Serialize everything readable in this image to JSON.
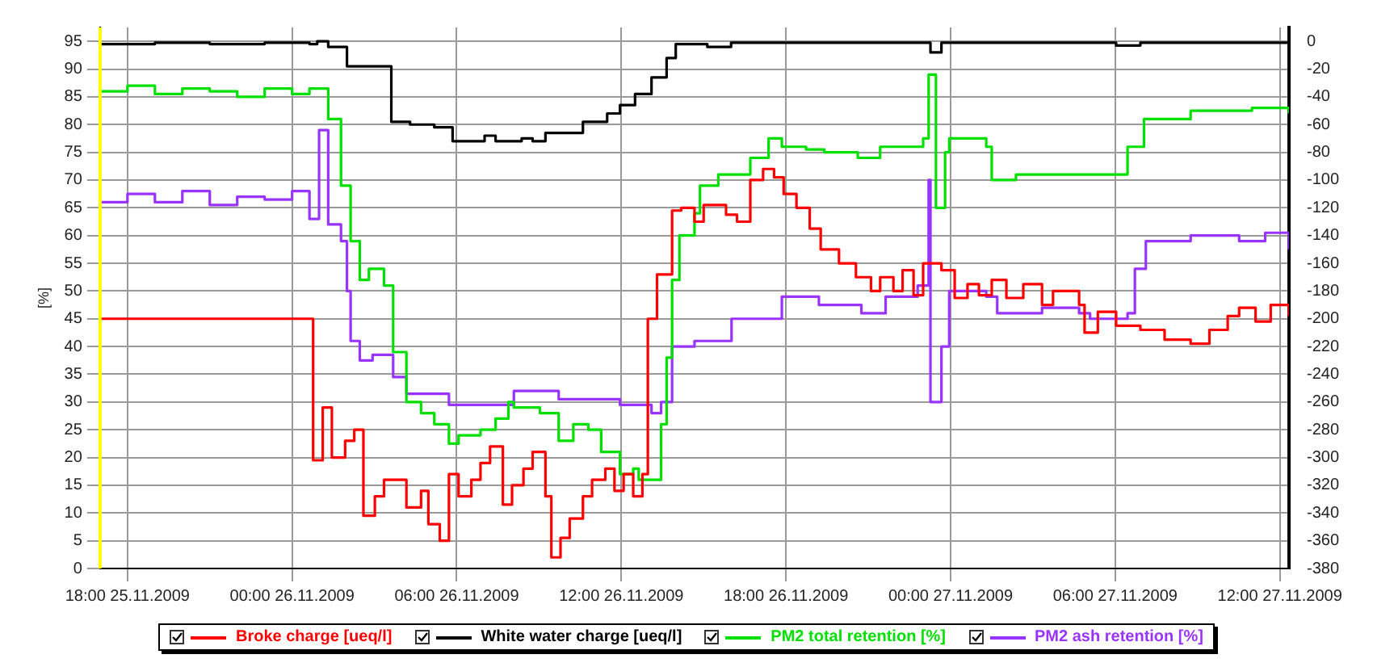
{
  "chart_data": {
    "type": "step",
    "ylabel": "[%]",
    "xlim": [
      "2009-11-25T17:00",
      "2009-11-27T12:20"
    ],
    "xticks": [
      {
        "value": "2009-11-25T18:00",
        "label": "18:00 25.11.2009"
      },
      {
        "value": "2009-11-26T00:00",
        "label": "00:00 26.11.2009"
      },
      {
        "value": "2009-11-26T06:00",
        "label": "06:00 26.11.2009"
      },
      {
        "value": "2009-11-26T12:00",
        "label": "12:00 26.11.2009"
      },
      {
        "value": "2009-11-26T18:00",
        "label": "18:00 26.11.2009"
      },
      {
        "value": "2009-11-27T00:00",
        "label": "00:00 27.11.2009"
      },
      {
        "value": "2009-11-27T06:00",
        "label": "06:00 27.11.2009"
      },
      {
        "value": "2009-11-27T12:00",
        "label": "12:00 27.11.2009"
      }
    ],
    "ylim": [
      0,
      97.5
    ],
    "yticks": [
      0,
      5,
      10,
      15,
      20,
      25,
      30,
      35,
      40,
      45,
      50,
      55,
      60,
      65,
      70,
      75,
      80,
      85,
      90,
      95
    ],
    "y2lim": [
      -380,
      10
    ],
    "y2ticks": [
      0,
      -20,
      -40,
      -60,
      -80,
      -100,
      -120,
      -140,
      -160,
      -180,
      -200,
      -220,
      -240,
      -260,
      -280,
      -300,
      -320,
      -340,
      -360,
      -380
    ],
    "grid": true,
    "legend": "bottom",
    "marker": "none",
    "line_style": "solid",
    "ref_lines": [
      {
        "axis": "x",
        "value": "2009-11-25T17:00",
        "color": "#ffff00"
      }
    ],
    "series": [
      {
        "name": "Broke charge [ueq/l]",
        "color": "#ff0000",
        "axis": "y2",
        "x": [
          "2009-11-25T17:00",
          "2009-11-26T00:46",
          "2009-11-26T01:07",
          "2009-11-26T01:27",
          "2009-11-26T01:56",
          "2009-11-26T02:16",
          "2009-11-26T02:36",
          "2009-11-26T03:01",
          "2009-11-26T03:21",
          "2009-11-26T04:10",
          "2009-11-26T04:42",
          "2009-11-26T04:58",
          "2009-11-26T05:23",
          "2009-11-26T05:43",
          "2009-11-26T06:04",
          "2009-11-26T06:32",
          "2009-11-26T06:52",
          "2009-11-26T07:13",
          "2009-11-26T07:41",
          "2009-11-26T08:01",
          "2009-11-26T08:26",
          "2009-11-26T08:46",
          "2009-11-26T09:14",
          "2009-11-26T09:27",
          "2009-11-26T09:47",
          "2009-11-26T10:07",
          "2009-11-26T10:36",
          "2009-11-26T10:56",
          "2009-11-26T11:25",
          "2009-11-26T11:45",
          "2009-11-26T12:05",
          "2009-11-26T12:26",
          "2009-11-26T12:46",
          "2009-11-26T12:58",
          "2009-11-26T13:18",
          "2009-11-26T13:51",
          "2009-11-26T14:11",
          "2009-11-26T14:40",
          "2009-11-26T15:00",
          "2009-11-26T15:49",
          "2009-11-26T16:13",
          "2009-11-26T16:42",
          "2009-11-26T17:10",
          "2009-11-26T17:34",
          "2009-11-26T17:55",
          "2009-11-26T18:23",
          "2009-11-26T18:52",
          "2009-11-26T19:16",
          "2009-11-26T19:56",
          "2009-11-26T20:33",
          "2009-11-26T21:06",
          "2009-11-26T21:26",
          "2009-11-26T21:55",
          "2009-11-26T22:15",
          "2009-11-26T22:39",
          "2009-11-26T23:00",
          "2009-11-26T23:40",
          "2009-11-27T00:09",
          "2009-11-27T00:37",
          "2009-11-27T01:02",
          "2009-11-27T01:30",
          "2009-11-27T02:02",
          "2009-11-27T02:39",
          "2009-11-27T03:20",
          "2009-11-27T03:44",
          "2009-11-27T04:41",
          "2009-11-27T04:53",
          "2009-11-27T05:22",
          "2009-11-27T06:02",
          "2009-11-27T06:55",
          "2009-11-27T07:48",
          "2009-11-27T08:45",
          "2009-11-27T09:26",
          "2009-11-27T10:06",
          "2009-11-27T10:31",
          "2009-11-27T11:07",
          "2009-11-27T11:40",
          "2009-11-27T12:20"
        ],
        "values": [
          -200,
          -302,
          -264,
          -300,
          -288,
          -280,
          -342,
          -328,
          -316,
          -336,
          -324,
          -348,
          -360,
          -312,
          -328,
          -316,
          -304,
          -292,
          -334,
          -320,
          -308,
          -296,
          -328,
          -372,
          -358,
          -344,
          -328,
          -316,
          -308,
          -324,
          -312,
          -328,
          -312,
          -200,
          -168,
          -122,
          -120,
          -130,
          -118,
          -125,
          -130,
          -100,
          -92,
          -98,
          -110,
          -120,
          -135,
          -150,
          -160,
          -170,
          -180,
          -170,
          -180,
          -165,
          -183,
          -160,
          -165,
          -185,
          -175,
          -183,
          -172,
          -185,
          -175,
          -190,
          -180,
          -190,
          -210,
          -195,
          -205,
          -208,
          -215,
          -218,
          -208,
          -198,
          -192,
          -202,
          -190,
          -198
        ]
      },
      {
        "name": "White water charge [ueq/l]",
        "color": "#000000",
        "axis": "y2",
        "x": [
          "2009-11-25T17:00",
          "2009-11-25T19:00",
          "2009-11-25T21:00",
          "2009-11-25T23:00",
          "2009-11-26T00:38",
          "2009-11-26T00:55",
          "2009-11-26T01:19",
          "2009-11-26T02:00",
          "2009-11-26T03:09",
          "2009-11-26T03:37",
          "2009-11-26T04:18",
          "2009-11-26T05:11",
          "2009-11-26T05:51",
          "2009-11-26T07:01",
          "2009-11-26T07:25",
          "2009-11-26T08:22",
          "2009-11-26T08:46",
          "2009-11-26T09:14",
          "2009-11-26T10:36",
          "2009-11-26T11:29",
          "2009-11-26T11:57",
          "2009-11-26T12:30",
          "2009-11-26T13:06",
          "2009-11-26T13:39",
          "2009-11-26T13:59",
          "2009-11-26T15:08",
          "2009-11-26T16:00",
          "2009-11-26T23:12",
          "2009-11-26T23:16",
          "2009-11-26T23:40",
          "2009-11-27T06:02",
          "2009-11-27T06:55",
          "2009-11-27T12:20"
        ],
        "values": [
          -2,
          -1,
          -2,
          -1,
          -2,
          0,
          -4,
          -18,
          -18,
          -58,
          -60,
          -62,
          -72,
          -68,
          -72,
          -70,
          -72,
          -66,
          -58,
          -52,
          -46,
          -38,
          -26,
          -12,
          -2,
          -4,
          -1,
          -1,
          -8,
          -1,
          -3,
          -1,
          -1
        ]
      },
      {
        "name": "PM2 total retention [%]",
        "color": "#00e000",
        "x": [
          "2009-11-25T17:00",
          "2009-11-25T18:00",
          "2009-11-25T19:00",
          "2009-11-25T20:00",
          "2009-11-25T21:00",
          "2009-11-25T22:00",
          "2009-11-25T23:00",
          "2009-11-26T00:00",
          "2009-11-26T00:38",
          "2009-11-26T01:19",
          "2009-11-26T01:47",
          "2009-11-26T02:08",
          "2009-11-26T02:28",
          "2009-11-26T02:48",
          "2009-11-26T03:21",
          "2009-11-26T03:41",
          "2009-11-26T04:10",
          "2009-11-26T04:42",
          "2009-11-26T05:11",
          "2009-11-26T05:43",
          "2009-11-26T06:04",
          "2009-11-26T06:52",
          "2009-11-26T07:25",
          "2009-11-26T07:53",
          "2009-11-26T08:05",
          "2009-11-26T09:02",
          "2009-11-26T09:43",
          "2009-11-26T10:15",
          "2009-11-26T10:48",
          "2009-11-26T11:16",
          "2009-11-26T11:57",
          "2009-11-26T12:26",
          "2009-11-26T12:38",
          "2009-11-26T13:18",
          "2009-11-26T13:27",
          "2009-11-26T13:39",
          "2009-11-26T13:51",
          "2009-11-26T14:07",
          "2009-11-26T14:40",
          "2009-11-26T14:52",
          "2009-11-26T15:32",
          "2009-11-26T16:42",
          "2009-11-26T17:22",
          "2009-11-26T17:51",
          "2009-11-26T18:44",
          "2009-11-26T19:24",
          "2009-11-26T20:37",
          "2009-11-26T21:26",
          "2009-11-26T23:00",
          "2009-11-26T23:12",
          "2009-11-26T23:28",
          "2009-11-26T23:48",
          "2009-11-26T23:57",
          "2009-11-27T01:18",
          "2009-11-27T01:30",
          "2009-11-27T02:23",
          "2009-11-27T04:13",
          "2009-11-27T06:02",
          "2009-11-27T06:27",
          "2009-11-27T07:03",
          "2009-11-27T08:45",
          "2009-11-27T10:59",
          "2009-11-27T12:20"
        ],
        "values": [
          86,
          87,
          85.5,
          86.5,
          86,
          85,
          86.5,
          85.5,
          86.5,
          81,
          69,
          59,
          52,
          54,
          51,
          39,
          30,
          28,
          26,
          22.5,
          24,
          25,
          27,
          30,
          29,
          28,
          23,
          26,
          25,
          21,
          17,
          18,
          16,
          16,
          26,
          38,
          52,
          60,
          64,
          69,
          71,
          74,
          77.5,
          76,
          75.5,
          75,
          74,
          76,
          77.5,
          89,
          65,
          75,
          77.5,
          76,
          70,
          71,
          71,
          71,
          76,
          81,
          82.5,
          83,
          82
        ]
      },
      {
        "name": "PM2 ash retention [%]",
        "color": "#9933ff",
        "x": [
          "2009-11-25T17:00",
          "2009-11-25T18:00",
          "2009-11-25T19:00",
          "2009-11-25T20:00",
          "2009-11-25T21:00",
          "2009-11-25T22:00",
          "2009-11-25T23:00",
          "2009-11-26T00:00",
          "2009-11-26T00:38",
          "2009-11-26T00:59",
          "2009-11-26T01:19",
          "2009-11-26T01:47",
          "2009-11-26T02:00",
          "2009-11-26T02:08",
          "2009-11-26T02:28",
          "2009-11-26T02:56",
          "2009-11-26T03:41",
          "2009-11-26T04:10",
          "2009-11-26T05:43",
          "2009-11-26T08:05",
          "2009-11-26T09:43",
          "2009-11-26T11:57",
          "2009-11-26T13:06",
          "2009-11-26T13:27",
          "2009-11-26T13:51",
          "2009-11-26T14:40",
          "2009-11-26T16:01",
          "2009-11-26T17:51",
          "2009-11-26T19:12",
          "2009-11-26T20:45",
          "2009-11-26T21:38",
          "2009-11-26T22:48",
          "2009-11-26T23:12",
          "2009-11-26T23:16",
          "2009-11-26T23:40",
          "2009-11-26T23:57",
          "2009-11-27T01:18",
          "2009-11-27T01:42",
          "2009-11-27T03:20",
          "2009-11-27T04:41",
          "2009-11-27T05:05",
          "2009-11-27T06:27",
          "2009-11-27T06:43",
          "2009-11-27T07:07",
          "2009-11-27T08:45",
          "2009-11-27T10:31",
          "2009-11-27T11:28",
          "2009-11-27T12:20"
        ],
        "values": [
          66,
          67.5,
          66,
          68,
          65.5,
          67,
          66.5,
          68,
          63,
          79,
          62,
          59,
          50,
          41,
          37.5,
          38.5,
          34.5,
          31.5,
          29.5,
          32,
          30.5,
          29.5,
          28,
          30,
          40,
          41,
          45,
          49,
          47.5,
          46,
          49,
          51,
          70,
          30,
          40,
          50,
          49,
          46,
          47,
          46,
          45,
          46,
          54,
          59,
          60,
          59,
          60.5,
          57.5
        ]
      }
    ]
  }
}
